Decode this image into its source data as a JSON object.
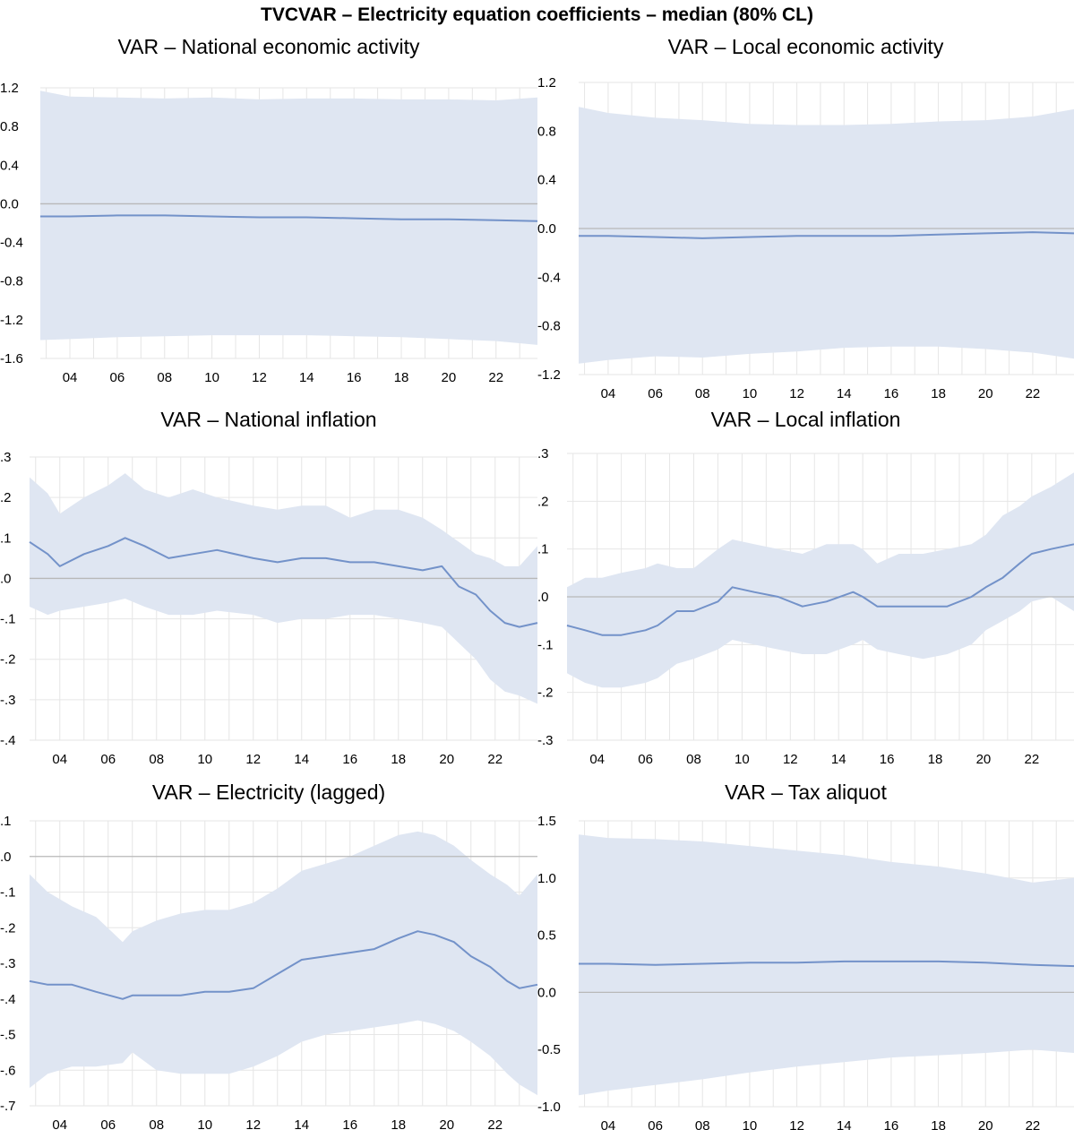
{
  "title": "TVCVAR – Electricity equation coefficients – median (80% CL)",
  "colors": {
    "band": "#dfe6f2",
    "line": "#7392c9",
    "grid": "#e6e6e6",
    "zero": "#b8b8b8"
  },
  "chart_data": [
    {
      "type": "area",
      "title": "VAR – National economic activity",
      "x_ticks": [
        "04",
        "06",
        "08",
        "10",
        "12",
        "14",
        "16",
        "18",
        "20",
        "22"
      ],
      "ylim": [
        -1.6,
        1.2
      ],
      "y_ticks": [
        "1.2",
        "0.8",
        "0.4",
        "0.0",
        "-0.4",
        "-0.8",
        "-1.2",
        "-1.6"
      ],
      "y_tick_values": [
        1.2,
        0.8,
        0.4,
        0.0,
        -0.4,
        -0.8,
        -1.2,
        -1.6
      ],
      "grid": true,
      "x": [
        2002.75,
        2004,
        2006,
        2008,
        2010,
        2012,
        2014,
        2016,
        2018,
        2020,
        2022,
        2023.75
      ],
      "series": [
        {
          "role": "upper",
          "values": [
            1.17,
            1.11,
            1.1,
            1.09,
            1.1,
            1.08,
            1.09,
            1.09,
            1.08,
            1.08,
            1.07,
            1.1
          ]
        },
        {
          "role": "median",
          "values": [
            -0.13,
            -0.13,
            -0.12,
            -0.12,
            -0.13,
            -0.14,
            -0.14,
            -0.15,
            -0.16,
            -0.16,
            -0.17,
            -0.18
          ]
        },
        {
          "role": "lower",
          "values": [
            -1.41,
            -1.4,
            -1.38,
            -1.37,
            -1.36,
            -1.36,
            -1.36,
            -1.37,
            -1.38,
            -1.4,
            -1.42,
            -1.46
          ]
        }
      ]
    },
    {
      "type": "area",
      "title": "VAR – Local economic activity",
      "x_ticks": [
        "04",
        "06",
        "08",
        "10",
        "12",
        "14",
        "16",
        "18",
        "20",
        "22"
      ],
      "ylim": [
        -1.2,
        1.2
      ],
      "y_ticks": [
        "1.2",
        "0.8",
        "0.4",
        "0.0",
        "-0.4",
        "-0.8",
        "-1.2"
      ],
      "y_tick_values": [
        1.2,
        0.8,
        0.4,
        0.0,
        -0.4,
        -0.8,
        -1.2
      ],
      "grid": true,
      "x": [
        2002.75,
        2004,
        2006,
        2008,
        2010,
        2012,
        2014,
        2016,
        2018,
        2020,
        2022,
        2023.75
      ],
      "series": [
        {
          "role": "upper",
          "values": [
            1.0,
            0.95,
            0.91,
            0.89,
            0.86,
            0.85,
            0.85,
            0.86,
            0.88,
            0.89,
            0.92,
            0.98
          ]
        },
        {
          "role": "median",
          "values": [
            -0.06,
            -0.06,
            -0.07,
            -0.08,
            -0.07,
            -0.06,
            -0.06,
            -0.06,
            -0.05,
            -0.04,
            -0.03,
            -0.04
          ]
        },
        {
          "role": "lower",
          "values": [
            -1.11,
            -1.08,
            -1.05,
            -1.06,
            -1.03,
            -1.01,
            -0.98,
            -0.97,
            -0.97,
            -0.99,
            -1.02,
            -1.07
          ]
        }
      ]
    },
    {
      "type": "area",
      "title": "VAR – National inflation",
      "x_ticks": [
        "04",
        "06",
        "08",
        "10",
        "12",
        "14",
        "16",
        "18",
        "20",
        "22"
      ],
      "ylim": [
        -0.4,
        0.3
      ],
      "y_ticks": [
        ".3",
        ".2",
        ".1",
        ".0",
        "-.1",
        "-.2",
        "-.3",
        "-.4"
      ],
      "y_tick_values": [
        0.3,
        0.2,
        0.1,
        0.0,
        -0.1,
        -0.2,
        -0.3,
        -0.4
      ],
      "grid": true,
      "x": [
        2002.75,
        2003.5,
        2004,
        2005,
        2006,
        2006.7,
        2007.5,
        2008.5,
        2009.5,
        2010.5,
        2012,
        2013,
        2014,
        2015,
        2016,
        2017,
        2018,
        2019,
        2019.8,
        2020.5,
        2021.2,
        2021.8,
        2022.4,
        2023,
        2023.75
      ],
      "series": [
        {
          "role": "upper",
          "values": [
            0.25,
            0.21,
            0.16,
            0.2,
            0.23,
            0.26,
            0.22,
            0.2,
            0.22,
            0.2,
            0.18,
            0.17,
            0.18,
            0.18,
            0.15,
            0.17,
            0.17,
            0.15,
            0.12,
            0.09,
            0.06,
            0.05,
            0.03,
            0.03,
            0.08
          ]
        },
        {
          "role": "median",
          "values": [
            0.09,
            0.06,
            0.03,
            0.06,
            0.08,
            0.1,
            0.08,
            0.05,
            0.06,
            0.07,
            0.05,
            0.04,
            0.05,
            0.05,
            0.04,
            0.04,
            0.03,
            0.02,
            0.03,
            -0.02,
            -0.04,
            -0.08,
            -0.11,
            -0.12,
            -0.11
          ]
        },
        {
          "role": "lower",
          "values": [
            -0.07,
            -0.09,
            -0.08,
            -0.07,
            -0.06,
            -0.05,
            -0.07,
            -0.09,
            -0.09,
            -0.08,
            -0.09,
            -0.11,
            -0.1,
            -0.1,
            -0.09,
            -0.09,
            -0.1,
            -0.11,
            -0.12,
            -0.16,
            -0.2,
            -0.25,
            -0.28,
            -0.29,
            -0.31
          ]
        }
      ]
    },
    {
      "type": "area",
      "title": "VAR – Local inflation",
      "x_ticks": [
        "04",
        "06",
        "08",
        "10",
        "12",
        "14",
        "16",
        "18",
        "20",
        "22"
      ],
      "ylim": [
        -0.3,
        0.3
      ],
      "y_ticks": [
        ".3",
        ".2",
        ".1",
        ".0",
        "-.1",
        "-.2",
        "-.3"
      ],
      "y_tick_values": [
        0.3,
        0.2,
        0.1,
        0.0,
        -0.1,
        -0.2,
        -0.3
      ],
      "grid": true,
      "x": [
        2002.75,
        2003.5,
        2004.2,
        2005,
        2006,
        2006.5,
        2007.3,
        2008,
        2009,
        2009.6,
        2010.5,
        2011.5,
        2012.5,
        2013.5,
        2014.6,
        2015,
        2015.6,
        2016.5,
        2017.5,
        2018.5,
        2019.5,
        2020.1,
        2020.8,
        2021.5,
        2022,
        2022.8,
        2023.75
      ],
      "series": [
        {
          "role": "upper",
          "values": [
            0.02,
            0.04,
            0.04,
            0.05,
            0.06,
            0.07,
            0.06,
            0.06,
            0.1,
            0.12,
            0.11,
            0.1,
            0.09,
            0.11,
            0.11,
            0.1,
            0.07,
            0.09,
            0.09,
            0.1,
            0.11,
            0.13,
            0.17,
            0.19,
            0.21,
            0.23,
            0.26
          ]
        },
        {
          "role": "median",
          "values": [
            -0.06,
            -0.07,
            -0.08,
            -0.08,
            -0.07,
            -0.06,
            -0.03,
            -0.03,
            -0.01,
            0.02,
            0.01,
            0.0,
            -0.02,
            -0.01,
            0.01,
            0.0,
            -0.02,
            -0.02,
            -0.02,
            -0.02,
            0.0,
            0.02,
            0.04,
            0.07,
            0.09,
            0.1,
            0.11
          ]
        },
        {
          "role": "lower",
          "values": [
            -0.16,
            -0.18,
            -0.19,
            -0.19,
            -0.18,
            -0.17,
            -0.14,
            -0.13,
            -0.11,
            -0.09,
            -0.1,
            -0.11,
            -0.12,
            -0.12,
            -0.1,
            -0.09,
            -0.11,
            -0.12,
            -0.13,
            -0.12,
            -0.1,
            -0.07,
            -0.05,
            -0.03,
            -0.01,
            0.0,
            -0.03
          ]
        }
      ]
    },
    {
      "type": "area",
      "title": "VAR – Electricity (lagged)",
      "x_ticks": [
        "04",
        "06",
        "08",
        "10",
        "12",
        "14",
        "16",
        "18",
        "20",
        "22"
      ],
      "ylim": [
        -0.7,
        0.1
      ],
      "y_ticks": [
        ".1",
        ".0",
        "-.1",
        "-.2",
        "-.3",
        "-.4",
        "-.5",
        "-.6",
        "-.7"
      ],
      "y_tick_values": [
        0.1,
        0.0,
        -0.1,
        -0.2,
        -0.3,
        -0.4,
        -0.5,
        -0.6,
        -0.7
      ],
      "grid": true,
      "x": [
        2002.75,
        2003.5,
        2004.5,
        2005.5,
        2006.6,
        2007,
        2008,
        2009,
        2010,
        2011,
        2012,
        2013,
        2014,
        2015,
        2016,
        2017,
        2018,
        2018.8,
        2019.5,
        2020.3,
        2021,
        2021.8,
        2022.5,
        2023,
        2023.75
      ],
      "series": [
        {
          "role": "upper",
          "values": [
            -0.05,
            -0.1,
            -0.14,
            -0.17,
            -0.24,
            -0.21,
            -0.18,
            -0.16,
            -0.15,
            -0.15,
            -0.13,
            -0.09,
            -0.04,
            -0.02,
            0.0,
            0.03,
            0.06,
            0.07,
            0.06,
            0.03,
            -0.01,
            -0.05,
            -0.08,
            -0.11,
            -0.05
          ]
        },
        {
          "role": "median",
          "values": [
            -0.35,
            -0.36,
            -0.36,
            -0.38,
            -0.4,
            -0.39,
            -0.39,
            -0.39,
            -0.38,
            -0.38,
            -0.37,
            -0.33,
            -0.29,
            -0.28,
            -0.27,
            -0.26,
            -0.23,
            -0.21,
            -0.22,
            -0.24,
            -0.28,
            -0.31,
            -0.35,
            -0.37,
            -0.36
          ]
        },
        {
          "role": "lower",
          "values": [
            -0.65,
            -0.61,
            -0.59,
            -0.59,
            -0.58,
            -0.55,
            -0.6,
            -0.61,
            -0.61,
            -0.61,
            -0.59,
            -0.56,
            -0.52,
            -0.5,
            -0.49,
            -0.48,
            -0.47,
            -0.46,
            -0.47,
            -0.49,
            -0.52,
            -0.56,
            -0.61,
            -0.64,
            -0.67
          ]
        }
      ]
    },
    {
      "type": "area",
      "title": "VAR – Tax aliquot",
      "x_ticks": [
        "04",
        "06",
        "08",
        "10",
        "12",
        "14",
        "16",
        "18",
        "20",
        "22"
      ],
      "ylim": [
        -1.0,
        1.5
      ],
      "y_ticks": [
        "1.5",
        "1.0",
        "0.5",
        "0.0",
        "-0.5",
        "-1.0"
      ],
      "y_tick_values": [
        1.5,
        1.0,
        0.5,
        0.0,
        -0.5,
        -1.0
      ],
      "grid": true,
      "x": [
        2002.75,
        2004,
        2006,
        2008,
        2010,
        2012,
        2014,
        2016,
        2018,
        2020,
        2022,
        2023.75
      ],
      "series": [
        {
          "role": "upper",
          "values": [
            1.38,
            1.35,
            1.34,
            1.32,
            1.28,
            1.24,
            1.2,
            1.14,
            1.1,
            1.04,
            0.96,
            1.0
          ]
        },
        {
          "role": "median",
          "values": [
            0.25,
            0.25,
            0.24,
            0.25,
            0.26,
            0.26,
            0.27,
            0.27,
            0.27,
            0.26,
            0.24,
            0.23
          ]
        },
        {
          "role": "lower",
          "values": [
            -0.9,
            -0.86,
            -0.81,
            -0.76,
            -0.7,
            -0.65,
            -0.61,
            -0.57,
            -0.55,
            -0.53,
            -0.5,
            -0.53
          ]
        }
      ]
    }
  ]
}
